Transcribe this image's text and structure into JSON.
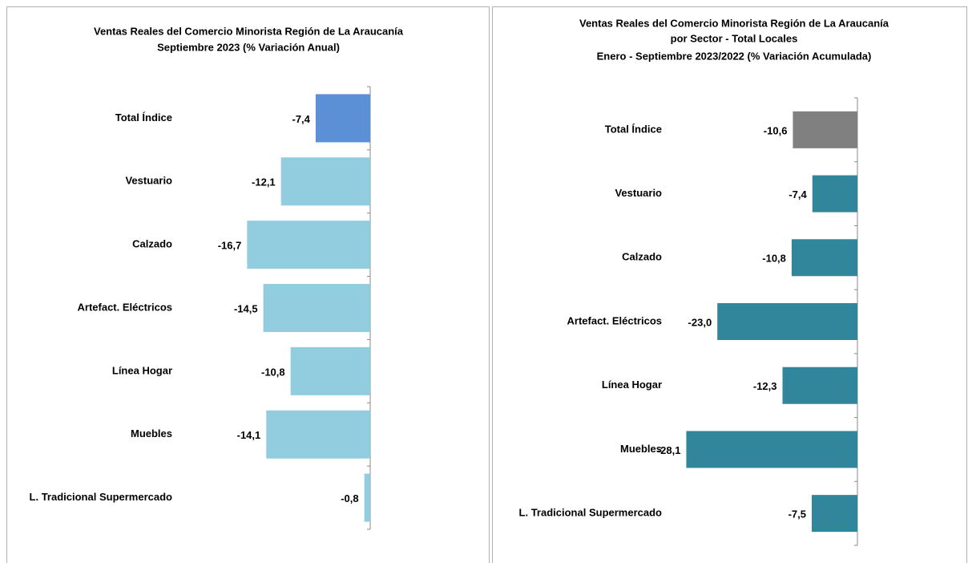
{
  "chart_data": [
    {
      "type": "barh",
      "title": [
        "Ventas Reales del Comercio Minorista  Región de La Araucanía",
        "Septiembre 2023 (% Variación Anual)"
      ],
      "categories": [
        "Total Índice",
        "Vestuario",
        "Calzado",
        "Artefact. Eléctricos",
        "Línea Hogar",
        "Muebles",
        "L. Tradicional Supermercado"
      ],
      "values": [
        -7.4,
        -12.1,
        -16.7,
        -14.5,
        -10.8,
        -14.1,
        -0.8
      ],
      "value_labels": [
        "-7,4",
        "-12,1",
        "-16,7",
        "-14,5",
        "-10,8",
        "-14,1",
        "-0,8"
      ],
      "colors": [
        "#5b8fd6",
        "#92cddf",
        "#92cddf",
        "#92cddf",
        "#92cddf",
        "#92cddf",
        "#92cddf"
      ],
      "xlim": [
        -20,
        0
      ]
    },
    {
      "type": "barh",
      "title": [
        "Ventas Reales del Comercio Minorista Región de La Araucanía",
        "por Sector - Total Locales",
        "Enero - Septiembre 2023/2022 (% Variación Acumulada)"
      ],
      "categories": [
        "Total Índice",
        "Vestuario",
        "Calzado",
        "Artefact. Eléctricos",
        "Línea Hogar",
        "Muebles",
        "L. Tradicional Supermercado"
      ],
      "values": [
        -10.6,
        -7.4,
        -10.8,
        -23.0,
        -12.3,
        -28.1,
        -7.5
      ],
      "value_labels": [
        "-10,6",
        "-7,4",
        "-10,8",
        "-23,0",
        "-12,3",
        "-28,1",
        "-7,5"
      ],
      "colors": [
        "#808080",
        "#31869b",
        "#31869b",
        "#31869b",
        "#31869b",
        "#31869b",
        "#31869b"
      ],
      "xlim": [
        -30,
        0
      ]
    }
  ]
}
